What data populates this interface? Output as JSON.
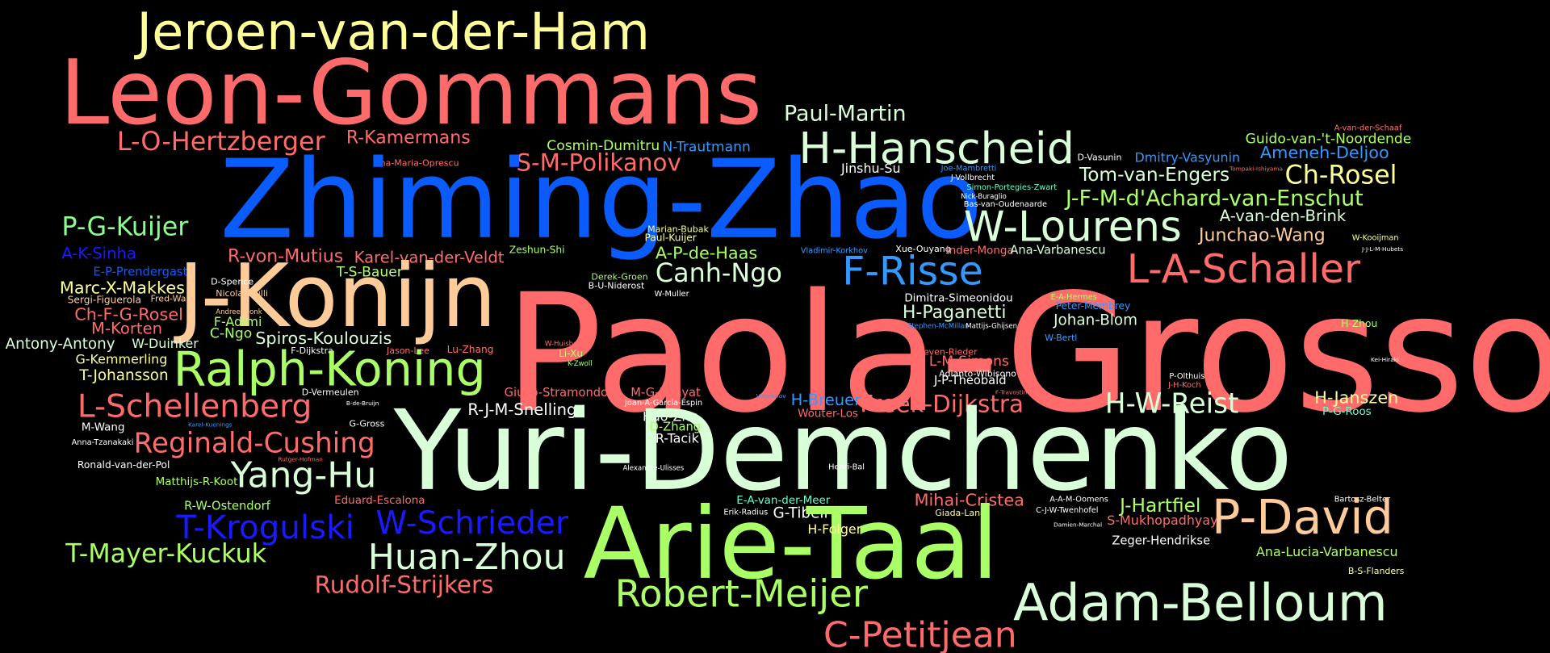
{
  "words": [
    {
      "text": "Jeroen-van-der-Ham",
      "color": "#ffff99"
    },
    {
      "text": "Leon-Gommans",
      "color": "#ff6b6b"
    },
    {
      "text": "Paul-Martin",
      "color": "#d9ffd9"
    },
    {
      "text": "L-O-Hertzberger",
      "color": "#ff6b6b"
    },
    {
      "text": "R-Kamermans",
      "color": "#ff6b6b"
    },
    {
      "text": "Cosmin-Dumitru",
      "color": "#aaff66"
    },
    {
      "text": "N-Trautmann",
      "color": "#3399ff"
    },
    {
      "text": "H-Hanscheid",
      "color": "#d9ffd9"
    },
    {
      "text": "Guido-van-'t-Noordende",
      "color": "#aaff66"
    },
    {
      "text": "A-van-der-Schaaf",
      "color": "#ff6b6b"
    },
    {
      "text": "Ameneh-Deljoo",
      "color": "#3399ff"
    },
    {
      "text": "Dmitry-Vasyunin",
      "color": "#3399ff"
    },
    {
      "text": "D-Vasunin",
      "color": "#ffffff"
    },
    {
      "text": "Ana-Maria-Oprescu",
      "color": "#ff6b6b"
    },
    {
      "text": "S-M-Polikanov",
      "color": "#ff6b6b"
    },
    {
      "text": "Zhiming-Zhao",
      "color": "#0a5cff"
    },
    {
      "text": "Jinshu-Su",
      "color": "#ffffff"
    },
    {
      "text": "Joe-Mambretti",
      "color": "#3399ff"
    },
    {
      "text": "J-Vollbrecht",
      "color": "#ffffff"
    },
    {
      "text": "Tom-van-Engers",
      "color": "#d9ffd9"
    },
    {
      "text": "Tompaki-Ishiyama",
      "color": "#ff6b6b"
    },
    {
      "text": "Ch-Rosel",
      "color": "#ffff99"
    },
    {
      "text": "Simon-Portegies-Zwart",
      "color": "#66ffcc"
    },
    {
      "text": "Nick-Buraglio",
      "color": "#ffffff"
    },
    {
      "text": "Bas-van-Oudenaarde",
      "color": "#ffffff"
    },
    {
      "text": "J-F-M-d'Achard-van-Enschut",
      "color": "#aaff66"
    },
    {
      "text": "A-van-den-Brink",
      "color": "#d9ffd9"
    },
    {
      "text": "P-G-Kuijer",
      "color": "#88ff88"
    },
    {
      "text": "W-Lourens",
      "color": "#d9ffd9"
    },
    {
      "text": "Junchao-Wang",
      "color": "#ffcc99"
    },
    {
      "text": "Marian-Bubak",
      "color": "#ffff99"
    },
    {
      "text": "Paul-Kuijer",
      "color": "#ffff99"
    },
    {
      "text": "W-Kooijman",
      "color": "#ffff99"
    },
    {
      "text": "Zeshun-Shi",
      "color": "#aaff66"
    },
    {
      "text": "A-P-de-Haas",
      "color": "#aaff66"
    },
    {
      "text": "Vladimir-Korkhov",
      "color": "#3399ff"
    },
    {
      "text": "Xue-Ouyang",
      "color": "#ffffff"
    },
    {
      "text": "Inder-Monga",
      "color": "#ff6b6b"
    },
    {
      "text": "Ana-Varbanescu",
      "color": "#d9ffd9"
    },
    {
      "text": "J-J-L-M-Hubets",
      "color": "#ffffff"
    },
    {
      "text": "A-K-Sinha",
      "color": "#1a1aff"
    },
    {
      "text": "R-von-Mutius",
      "color": "#ff6b6b"
    },
    {
      "text": "Karel-van-der-Veldt",
      "color": "#ff6b6b"
    },
    {
      "text": "T-S-Bauer",
      "color": "#aaff66"
    },
    {
      "text": "F-Risse",
      "color": "#3399ff"
    },
    {
      "text": "L-A-Schaller",
      "color": "#ff6b6b"
    },
    {
      "text": "E-P-Prendergast",
      "color": "#0a5cff"
    },
    {
      "text": "J-Konijn",
      "color": "#ffcc99"
    },
    {
      "text": "Canh-Ngo",
      "color": "#d9ffd9"
    },
    {
      "text": "Derek-Groen",
      "color": "#aaff66"
    },
    {
      "text": "B-U-Niderost",
      "color": "#ffffff"
    },
    {
      "text": "Paola-Grosso",
      "color": "#ff6b6b"
    },
    {
      "text": "D-Spence",
      "color": "#ffffff"
    },
    {
      "text": "Marc-X-Makkes",
      "color": "#ffff99"
    },
    {
      "text": "Sergi-Figuerola",
      "color": "#ffcc99"
    },
    {
      "text": "Fred-Wan",
      "color": "#ffcc99"
    },
    {
      "text": "Nicola-Ciulli",
      "color": "#ffcc99"
    },
    {
      "text": "W-Muller",
      "color": "#ffffff"
    },
    {
      "text": "Dimitra-Simeonidou",
      "color": "#ffffff"
    },
    {
      "text": "E-A-Hermes",
      "color": "#aaff66"
    },
    {
      "text": "Peter-Membrey",
      "color": "#3399ff"
    },
    {
      "text": "Ch-F-G-Rosel",
      "color": "#ff6b6b"
    },
    {
      "text": "Andree-Toonk",
      "color": "#ffcc99"
    },
    {
      "text": "H-Paganetti",
      "color": "#d9ffd9"
    },
    {
      "text": "F-Adimi",
      "color": "#aaff66"
    },
    {
      "text": "Johan-Blom",
      "color": "#d9ffd9"
    },
    {
      "text": "H-Zhou",
      "color": "#aaff66"
    },
    {
      "text": "M-Korten",
      "color": "#ff6b6b"
    },
    {
      "text": "C-Ngo",
      "color": "#aaff66"
    },
    {
      "text": "Stephen-McMillan",
      "color": "#3399ff"
    },
    {
      "text": "Mattijs-Ghijsen",
      "color": "#ffffff"
    },
    {
      "text": "Spiros-Koulouzis",
      "color": "#d9ffd9"
    },
    {
      "text": "Antony-Antony",
      "color": "#d9ffd9"
    },
    {
      "text": "W-Duinker",
      "color": "#d9ffd9"
    },
    {
      "text": "W-Bertl",
      "color": "#3399ff"
    },
    {
      "text": "W-Huisbergen",
      "color": "#ff6b6b"
    },
    {
      "text": "F-Dijkstra",
      "color": "#ffffff"
    },
    {
      "text": "Jason-Lee",
      "color": "#ff6b6b"
    },
    {
      "text": "Lu-Zhang",
      "color": "#ff6b6b"
    },
    {
      "text": "Li-Xu",
      "color": "#aaff66"
    },
    {
      "text": "Steven-Rieder",
      "color": "#ff6b6b"
    },
    {
      "text": "Kei-Hiraki",
      "color": "#ffffff"
    },
    {
      "text": "G-Kemmerling",
      "color": "#ffff99"
    },
    {
      "text": "Ralph-Koning",
      "color": "#aaff66"
    },
    {
      "text": "K-Zwoll",
      "color": "#aaff66"
    },
    {
      "text": "L-M-Simons",
      "color": "#ff6b6b"
    },
    {
      "text": "Adianto-Wibisono",
      "color": "#ffffff"
    },
    {
      "text": "T-Johansson",
      "color": "#ffff99"
    },
    {
      "text": "J-P-Theobald",
      "color": "#ffffff"
    },
    {
      "text": "P-Olthuis",
      "color": "#ffffff"
    },
    {
      "text": "J-H-Koch",
      "color": "#ff6b6b"
    },
    {
      "text": "D-Vermeulen",
      "color": "#ffffff"
    },
    {
      "text": "Giulio-Stramondo",
      "color": "#ff6b6b"
    },
    {
      "text": "M-G-Khayat",
      "color": "#ff6b6b"
    },
    {
      "text": "V-Korkhov",
      "color": "#3399ff"
    },
    {
      "text": "F-Travostino",
      "color": "#ff6b6b"
    },
    {
      "text": "H-Breuer",
      "color": "#3399ff"
    },
    {
      "text": "Freek-Dijkstra",
      "color": "#ff6b6b"
    },
    {
      "text": "H-W-Reist",
      "color": "#d9ffd9"
    },
    {
      "text": "H-Janszen",
      "color": "#ffff99"
    },
    {
      "text": "L-Schellenberg",
      "color": "#ff6b6b"
    },
    {
      "text": "B-de-Bruijn",
      "color": "#ffffff"
    },
    {
      "text": "Joan-A-Garcia-Espin",
      "color": "#ffffff"
    },
    {
      "text": "R-J-M-Snellings",
      "color": "#ffffff"
    },
    {
      "text": "Wouter-Los",
      "color": "#ff6b6b"
    },
    {
      "text": "P-G-Roos",
      "color": "#66ffcc"
    },
    {
      "text": "Hao-Zhu",
      "color": "#ffffff"
    },
    {
      "text": "Yuri-Demchenko",
      "color": "#d9ffd9"
    },
    {
      "text": "Karel-Kuenings",
      "color": "#3399ff"
    },
    {
      "text": "G-Gross",
      "color": "#ffffff"
    },
    {
      "text": "D-Zhang",
      "color": "#aaff66"
    },
    {
      "text": "M-Wang",
      "color": "#ffffff"
    },
    {
      "text": "R-Tacik",
      "color": "#ffffff"
    },
    {
      "text": "Reginald-Cushing",
      "color": "#ff6b6b"
    },
    {
      "text": "Anna-Tzanakaki",
      "color": "#ffffff"
    },
    {
      "text": "Henri-Bal",
      "color": "#ffffff"
    },
    {
      "text": "Ronald-van-der-Pol",
      "color": "#ffffff"
    },
    {
      "text": "Rutger-Hofman",
      "color": "#ff6b6b"
    },
    {
      "text": "Alexandre-Ulisses",
      "color": "#ffffff"
    },
    {
      "text": "Yang-Hu",
      "color": "#d9ffd9"
    },
    {
      "text": "Matthijs-R-Koot",
      "color": "#aaff66"
    },
    {
      "text": "Bartosz-Belter",
      "color": "#ffffff"
    },
    {
      "text": "A-A-M-Oomens",
      "color": "#ffffff"
    },
    {
      "text": "Eduard-Escalona",
      "color": "#ff6b6b"
    },
    {
      "text": "E-A-van-der-Meer",
      "color": "#66ffcc"
    },
    {
      "text": "Mihai-Cristea",
      "color": "#ff6b6b"
    },
    {
      "text": "J-Hartfiel",
      "color": "#aaff66"
    },
    {
      "text": "C-J-W-Twenhofel",
      "color": "#ffffff"
    },
    {
      "text": "R-W-Ostendorf",
      "color": "#aaff66"
    },
    {
      "text": "Erik-Radius",
      "color": "#ffffff"
    },
    {
      "text": "G-Tibell",
      "color": "#ffffff"
    },
    {
      "text": "Giada-Landi",
      "color": "#ffff99"
    },
    {
      "text": "P-David",
      "color": "#ffcc99"
    },
    {
      "text": "S-Mukhopadhyay",
      "color": "#ff6b6b"
    },
    {
      "text": "T-Krogulski",
      "color": "#1a1aff"
    },
    {
      "text": "W-Schrieder",
      "color": "#1a1aff"
    },
    {
      "text": "Arie-Taal",
      "color": "#aaff66"
    },
    {
      "text": "Damien-Marchal",
      "color": "#ffffff"
    },
    {
      "text": "H-Folger",
      "color": "#ffff99"
    },
    {
      "text": "Zeger-Hendrikse",
      "color": "#ffffff"
    },
    {
      "text": "Huan-Zhou",
      "color": "#d9ffd9"
    },
    {
      "text": "T-Mayer-Kuckuk",
      "color": "#aaff66"
    },
    {
      "text": "Ana-Lucia-Varbanescu",
      "color": "#aaff66"
    },
    {
      "text": "B-S-Flanders",
      "color": "#ffff99"
    },
    {
      "text": "Rudolf-Strijkers",
      "color": "#ff6b6b"
    },
    {
      "text": "Robert-Meijer",
      "color": "#aaff66"
    },
    {
      "text": "Adam-Belloum",
      "color": "#d9ffd9"
    },
    {
      "text": "C-Petitjean",
      "color": "#ff6b6b"
    }
  ]
}
